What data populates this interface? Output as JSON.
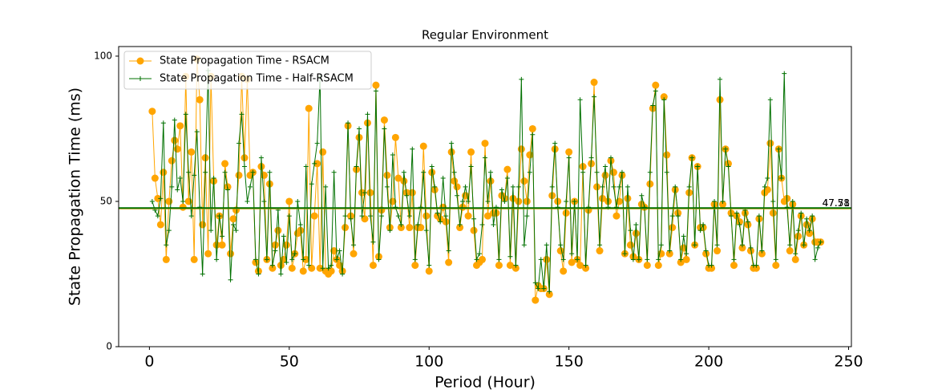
{
  "chart_data": {
    "type": "line",
    "title": "Regular Environment",
    "x_label": "Period (Hour)",
    "y_label": "State Propagation Time (ms)",
    "xlim": [
      -11,
      251
    ],
    "ylim": [
      0,
      103.3
    ],
    "xticks": [
      0,
      50,
      100,
      150,
      200,
      250
    ],
    "yticks": [
      0,
      50,
      100
    ],
    "grid": false,
    "legend": "upper left",
    "x": [
      1,
      2,
      3,
      4,
      5,
      6,
      7,
      8,
      9,
      10,
      11,
      12,
      13,
      14,
      15,
      16,
      17,
      18,
      19,
      20,
      21,
      22,
      23,
      24,
      25,
      26,
      27,
      28,
      29,
      30,
      31,
      32,
      33,
      34,
      35,
      36,
      37,
      38,
      39,
      40,
      41,
      42,
      43,
      44,
      45,
      46,
      47,
      48,
      49,
      50,
      51,
      52,
      53,
      54,
      55,
      56,
      57,
      58,
      59,
      60,
      61,
      62,
      63,
      64,
      65,
      66,
      67,
      68,
      69,
      70,
      71,
      72,
      73,
      74,
      75,
      76,
      77,
      78,
      79,
      80,
      81,
      82,
      83,
      84,
      85,
      86,
      87,
      88,
      89,
      90,
      91,
      92,
      93,
      94,
      95,
      96,
      97,
      98,
      99,
      100,
      101,
      102,
      103,
      104,
      105,
      106,
      107,
      108,
      109,
      110,
      111,
      112,
      113,
      114,
      115,
      116,
      117,
      118,
      119,
      120,
      121,
      122,
      123,
      124,
      125,
      126,
      127,
      128,
      129,
      130,
      131,
      132,
      133,
      134,
      135,
      136,
      137,
      138,
      139,
      140,
      141,
      142,
      143,
      144,
      145,
      146,
      147,
      148,
      149,
      150,
      151,
      152,
      153,
      154,
      155,
      156,
      157,
      158,
      159,
      160,
      161,
      162,
      163,
      164,
      165,
      166,
      167,
      168,
      169,
      170,
      171,
      172,
      173,
      174,
      175,
      176,
      177,
      178,
      179,
      180,
      181,
      182,
      183,
      184,
      185,
      186,
      187,
      188,
      189,
      190,
      191,
      192,
      193,
      194,
      195,
      196,
      197,
      198,
      199,
      200,
      201,
      202,
      203,
      204,
      205,
      206,
      207,
      208,
      209,
      210,
      211,
      212,
      213,
      214,
      215,
      216,
      217,
      218,
      219,
      220,
      221,
      222,
      223,
      224,
      225,
      226,
      227,
      228,
      229,
      230,
      231,
      232,
      233,
      234,
      235,
      236,
      237,
      238,
      239,
      240
    ],
    "series": [
      {
        "name": "State Propagation Time - RSACM",
        "color": "#ffa500",
        "marker": "circle",
        "mean": 47.58,
        "values": [
          81,
          58,
          51,
          42,
          60,
          30,
          50,
          64,
          71,
          68,
          76,
          48,
          93,
          50,
          67,
          30,
          99,
          85,
          42,
          65,
          32,
          93,
          57,
          35,
          45,
          35,
          63,
          55,
          32,
          44,
          47,
          59,
          93,
          65,
          92,
          59,
          60,
          29,
          26,
          62,
          59,
          30,
          56,
          27,
          35,
          40,
          28,
          30,
          35,
          50,
          27,
          32,
          39,
          40,
          26,
          30,
          82,
          27,
          45,
          63,
          27,
          67,
          26,
          25,
          26,
          33,
          30,
          28,
          26,
          41,
          76,
          45,
          32,
          61,
          72,
          53,
          44,
          77,
          53,
          28,
          90,
          31,
          47,
          78,
          59,
          41,
          50,
          72,
          58,
          41,
          57,
          53,
          41,
          53,
          28,
          41,
          41,
          69,
          45,
          26,
          60,
          54,
          45,
          44,
          48,
          43,
          29,
          67,
          57,
          55,
          41,
          48,
          52,
          45,
          67,
          40,
          28,
          29,
          30,
          70,
          45,
          57,
          46,
          46,
          28,
          52,
          51,
          61,
          28,
          51,
          27,
          50,
          68,
          57,
          50,
          66,
          75,
          16,
          21,
          20,
          20,
          30,
          18,
          52,
          68,
          50,
          33,
          26,
          46,
          67,
          29,
          50,
          30,
          28,
          62,
          27,
          47,
          63,
          91,
          55,
          33,
          51,
          59,
          50,
          64,
          60,
          45,
          50,
          59,
          32,
          51,
          35,
          31,
          39,
          30,
          49,
          48,
          28,
          56,
          82,
          90,
          28,
          32,
          86,
          66,
          32,
          41,
          54,
          46,
          29,
          34,
          30,
          53,
          65,
          35,
          62,
          41,
          41,
          32,
          27,
          27,
          49,
          33,
          85,
          49,
          68,
          63,
          46,
          28,
          45,
          43,
          34,
          46,
          42,
          33,
          27,
          27,
          44,
          32,
          53,
          54,
          70,
          46,
          28,
          68,
          58,
          50,
          51,
          33,
          49,
          30,
          38,
          45,
          35,
          42,
          39,
          44,
          36,
          36,
          36
        ]
      },
      {
        "name": "State Propagation Time - Half-RSACM",
        "color": "#007000",
        "marker": "plus",
        "mean": 47.71,
        "values": [
          50,
          47,
          45,
          51,
          77,
          35,
          40,
          55,
          78,
          54,
          58,
          50,
          80,
          60,
          45,
          59,
          74,
          48,
          25,
          60,
          95,
          40,
          58,
          30,
          45,
          38,
          60,
          54,
          23,
          42,
          40,
          70,
          80,
          62,
          50,
          55,
          60,
          30,
          25,
          65,
          50,
          30,
          60,
          28,
          33,
          47,
          25,
          38,
          29,
          45,
          30,
          32,
          50,
          42,
          30,
          62,
          28,
          56,
          63,
          70,
          93,
          27,
          55,
          27,
          28,
          60,
          30,
          33,
          25,
          45,
          77,
          44,
          35,
          62,
          75,
          45,
          53,
          80,
          45,
          36,
          88,
          30,
          45,
          75,
          55,
          40,
          66,
          48,
          45,
          42,
          60,
          52,
          45,
          68,
          30,
          42,
          48,
          60,
          40,
          28,
          62,
          55,
          46,
          43,
          58,
          45,
          33,
          70,
          60,
          52,
          42,
          50,
          55,
          50,
          62,
          44,
          30,
          32,
          42,
          65,
          50,
          60,
          42,
          48,
          30,
          54,
          50,
          58,
          31,
          55,
          28,
          55,
          92,
          35,
          45,
          60,
          73,
          22,
          20,
          30,
          20,
          35,
          19,
          55,
          70,
          48,
          35,
          30,
          50,
          65,
          32,
          50,
          30,
          85,
          60,
          28,
          48,
          65,
          86,
          60,
          35,
          55,
          62,
          48,
          65,
          55,
          48,
          55,
          60,
          32,
          55,
          40,
          30,
          42,
          30,
          52,
          48,
          30,
          60,
          83,
          88,
          30,
          35,
          85,
          60,
          33,
          45,
          55,
          45,
          30,
          38,
          32,
          55,
          65,
          35,
          62,
          40,
          42,
          33,
          28,
          28,
          50,
          35,
          92,
          50,
          68,
          62,
          45,
          30,
          46,
          42,
          35,
          47,
          43,
          34,
          28,
          28,
          45,
          33,
          55,
          58,
          85,
          50,
          30,
          68,
          58,
          94,
          48,
          35,
          50,
          32,
          40,
          46,
          35,
          44,
          40,
          45,
          30,
          34,
          36
        ]
      }
    ]
  }
}
